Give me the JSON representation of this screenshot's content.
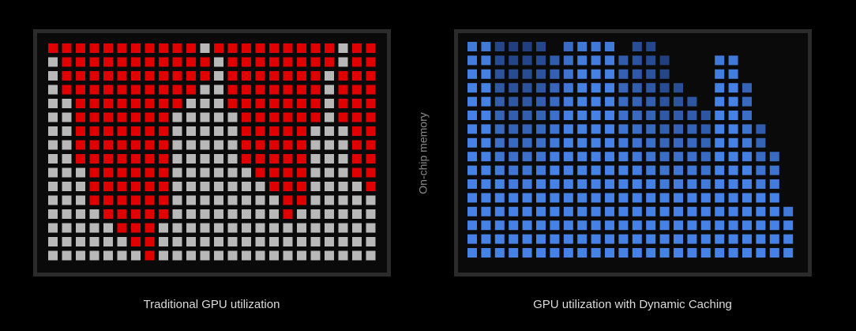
{
  "panels": [
    {
      "caption": "Traditional GPU utilization"
    },
    {
      "caption": "GPU utilization with Dynamic Caching"
    }
  ],
  "axis_label": "On-chip memory"
}
